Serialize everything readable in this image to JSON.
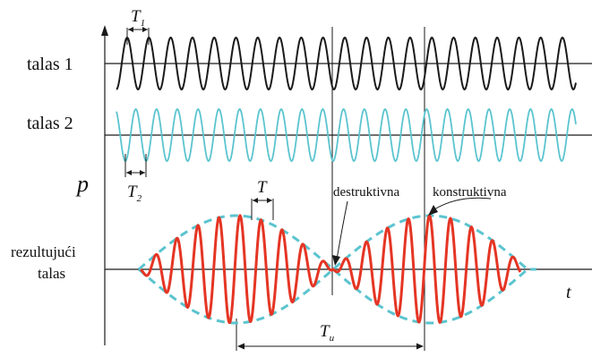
{
  "labels": {
    "wave1": "talas 1",
    "wave2": "talas 2",
    "axis_p": "p",
    "axis_t": "t",
    "result_line1": "rezultujući",
    "result_line2": "talas",
    "destructive": "destruktivna",
    "constructive": "konstruktivna",
    "period1_main": "T",
    "period1_sub": "1",
    "period2_main": "T",
    "period2_sub": "2",
    "period_beat_carrier": "T",
    "period_beat_main": "T",
    "period_beat_sub": "u"
  },
  "colors": {
    "wave1": "#1a1a1a",
    "wave2": "#5bc4cf",
    "result": "#e53524",
    "envelope": "#5bc4cf",
    "axis": "#1a1a1a"
  }
}
